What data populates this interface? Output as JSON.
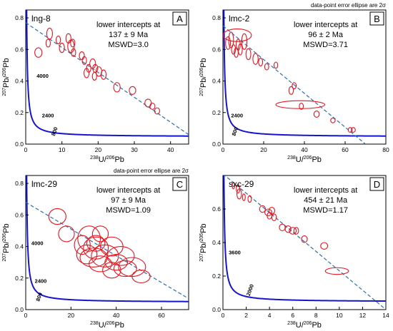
{
  "figure": {
    "error_note": "data-point error ellipse are 2σ"
  },
  "chart_data": [
    {
      "type": "scatter",
      "panel": "A",
      "sample": "lng-8",
      "intercept_lines": [
        "lower intercepts at",
        "137 ± 9 Ma",
        "MSWD=3.0"
      ],
      "xlabel": "238U/206Pb",
      "ylabel": "207Pb/206Pb",
      "xlim": [
        0,
        45
      ],
      "ylim": [
        0,
        0.85
      ],
      "xticks": [
        0,
        10,
        20,
        30,
        40
      ],
      "yticks": [
        0.0,
        0.2,
        0.4,
        0.6,
        0.8
      ],
      "show_error_note": false,
      "concordia_labels": [
        {
          "text": "4000",
          "x": 3.0,
          "y": 0.42
        },
        {
          "text": "2400",
          "x": 4.5,
          "y": 0.17
        },
        {
          "text": "800",
          "x": 8.0,
          "y": 0.05
        }
      ],
      "discordia": {
        "x": [
          0,
          45
        ],
        "y": [
          0.77,
          0.06
        ]
      },
      "points": [
        {
          "x": 3.5,
          "y": 0.58,
          "rx": 1.0,
          "ry": 0.03
        },
        {
          "x": 6.6,
          "y": 0.7,
          "rx": 0.8,
          "ry": 0.035
        },
        {
          "x": 6.2,
          "y": 0.64,
          "rx": 0.6,
          "ry": 0.025
        },
        {
          "x": 9.0,
          "y": 0.66,
          "rx": 0.6,
          "ry": 0.025
        },
        {
          "x": 10.0,
          "y": 0.61,
          "rx": 0.7,
          "ry": 0.03
        },
        {
          "x": 11.8,
          "y": 0.67,
          "rx": 0.7,
          "ry": 0.03
        },
        {
          "x": 12.5,
          "y": 0.62,
          "rx": 0.9,
          "ry": 0.04
        },
        {
          "x": 13.2,
          "y": 0.58,
          "rx": 0.6,
          "ry": 0.025
        },
        {
          "x": 13.0,
          "y": 0.64,
          "rx": 0.6,
          "ry": 0.025
        },
        {
          "x": 15.5,
          "y": 0.56,
          "rx": 0.7,
          "ry": 0.025
        },
        {
          "x": 16.2,
          "y": 0.53,
          "rx": 0.6,
          "ry": 0.025
        },
        {
          "x": 16.8,
          "y": 0.45,
          "rx": 0.7,
          "ry": 0.03
        },
        {
          "x": 17.4,
          "y": 0.48,
          "rx": 0.6,
          "ry": 0.025
        },
        {
          "x": 18.5,
          "y": 0.51,
          "rx": 0.8,
          "ry": 0.03
        },
        {
          "x": 19.2,
          "y": 0.48,
          "rx": 0.7,
          "ry": 0.025
        },
        {
          "x": 19.0,
          "y": 0.43,
          "rx": 0.6,
          "ry": 0.025
        },
        {
          "x": 20.2,
          "y": 0.46,
          "rx": 0.8,
          "ry": 0.03
        },
        {
          "x": 21.5,
          "y": 0.44,
          "rx": 0.7,
          "ry": 0.03
        },
        {
          "x": 25.2,
          "y": 0.36,
          "rx": 0.9,
          "ry": 0.03
        },
        {
          "x": 29.5,
          "y": 0.34,
          "rx": 0.9,
          "ry": 0.025
        },
        {
          "x": 33.8,
          "y": 0.26,
          "rx": 0.9,
          "ry": 0.025
        },
        {
          "x": 35.0,
          "y": 0.24,
          "rx": 0.7,
          "ry": 0.02
        },
        {
          "x": 36.3,
          "y": 0.21,
          "rx": 0.7,
          "ry": 0.02
        }
      ]
    },
    {
      "type": "scatter",
      "panel": "B",
      "sample": "lmc-2",
      "intercept_lines": [
        "lower intercepts at",
        "96 ± 2 Ma",
        "MSWD=3.71"
      ],
      "xlabel": "238U/206Pb",
      "ylabel": "207Pb/206Pb",
      "xlim": [
        0,
        80
      ],
      "ylim": [
        0,
        0.85
      ],
      "xticks": [
        0,
        20,
        40,
        60,
        80
      ],
      "yticks": [
        0.0,
        0.2,
        0.4,
        0.6,
        0.8
      ],
      "show_error_note": true,
      "concordia_labels": [
        {
          "text": "2400",
          "x": 4.0,
          "y": 0.17
        },
        {
          "text": "800",
          "x": 6.0,
          "y": 0.05
        }
      ],
      "discordia": {
        "x": [
          0,
          70
        ],
        "y": [
          0.75,
          0.0
        ]
      },
      "points": [
        {
          "x": 7.0,
          "y": 0.69,
          "rx": 7.0,
          "ry": 0.04
        },
        {
          "x": 2.5,
          "y": 0.64,
          "rx": 1.2,
          "ry": 0.04
        },
        {
          "x": 4.0,
          "y": 0.66,
          "rx": 1.2,
          "ry": 0.05
        },
        {
          "x": 5.2,
          "y": 0.6,
          "rx": 1.0,
          "ry": 0.03
        },
        {
          "x": 6.5,
          "y": 0.58,
          "rx": 1.0,
          "ry": 0.03
        },
        {
          "x": 7.5,
          "y": 0.63,
          "rx": 1.0,
          "ry": 0.035
        },
        {
          "x": 8.5,
          "y": 0.6,
          "rx": 1.0,
          "ry": 0.035
        },
        {
          "x": 10.5,
          "y": 0.65,
          "rx": 1.3,
          "ry": 0.05
        },
        {
          "x": 12.5,
          "y": 0.57,
          "rx": 1.2,
          "ry": 0.035
        },
        {
          "x": 16.0,
          "y": 0.54,
          "rx": 1.3,
          "ry": 0.035
        },
        {
          "x": 18.5,
          "y": 0.52,
          "rx": 1.0,
          "ry": 0.025
        },
        {
          "x": 21.5,
          "y": 0.49,
          "rx": 1.0,
          "ry": 0.02
        },
        {
          "x": 26.0,
          "y": 0.5,
          "rx": 0.9,
          "ry": 0.02
        },
        {
          "x": 33.5,
          "y": 0.34,
          "rx": 1.1,
          "ry": 0.025
        },
        {
          "x": 35.0,
          "y": 0.37,
          "rx": 1.0,
          "ry": 0.02
        },
        {
          "x": 38.0,
          "y": 0.25,
          "rx": 12.0,
          "ry": 0.025
        },
        {
          "x": 38.5,
          "y": 0.24,
          "rx": 1.0,
          "ry": 0.02
        },
        {
          "x": 46.0,
          "y": 0.19,
          "rx": 1.3,
          "ry": 0.02
        },
        {
          "x": 54.0,
          "y": 0.15,
          "rx": 1.1,
          "ry": 0.015
        },
        {
          "x": 62.5,
          "y": 0.09,
          "rx": 1.0,
          "ry": 0.015
        },
        {
          "x": 64.0,
          "y": 0.09,
          "rx": 1.0,
          "ry": 0.015
        }
      ]
    },
    {
      "type": "scatter",
      "panel": "C",
      "sample": "lmc-29",
      "intercept_lines": [
        "lower intercepts at",
        "97 ± 9 Ma",
        "MSWD=1.09"
      ],
      "xlabel": "238U/206Pb",
      "ylabel": "207Pb/206Pb",
      "xlim": [
        0,
        72
      ],
      "ylim": [
        0,
        0.85
      ],
      "xticks": [
        0,
        20,
        40,
        60
      ],
      "yticks": [
        0.0,
        0.2,
        0.4,
        0.6,
        0.8
      ],
      "show_error_note": true,
      "concordia_labels": [
        {
          "text": "4000",
          "x": 2.5,
          "y": 0.41
        },
        {
          "text": "2400",
          "x": 4.0,
          "y": 0.17
        },
        {
          "text": "800",
          "x": 6.0,
          "y": 0.05
        }
      ],
      "discordia": {
        "x": [
          0,
          72
        ],
        "y": [
          0.68,
          0.07
        ]
      },
      "points": [
        {
          "x": 14.0,
          "y": 0.59,
          "rx": 3.8,
          "ry": 0.05
        },
        {
          "x": 18.0,
          "y": 0.48,
          "rx": 3.5,
          "ry": 0.05
        },
        {
          "x": 25.0,
          "y": 0.41,
          "rx": 3.5,
          "ry": 0.06
        },
        {
          "x": 28.0,
          "y": 0.45,
          "rx": 5.0,
          "ry": 0.08
        },
        {
          "x": 31.0,
          "y": 0.39,
          "rx": 5.5,
          "ry": 0.07
        },
        {
          "x": 33.0,
          "y": 0.48,
          "rx": 3.5,
          "ry": 0.05
        },
        {
          "x": 27.0,
          "y": 0.35,
          "rx": 4.5,
          "ry": 0.06
        },
        {
          "x": 30.0,
          "y": 0.33,
          "rx": 6.0,
          "ry": 0.06
        },
        {
          "x": 35.0,
          "y": 0.34,
          "rx": 6.0,
          "ry": 0.07
        },
        {
          "x": 38.0,
          "y": 0.4,
          "rx": 5.0,
          "ry": 0.06
        },
        {
          "x": 33.0,
          "y": 0.29,
          "rx": 5.0,
          "ry": 0.05
        },
        {
          "x": 40.0,
          "y": 0.3,
          "rx": 5.0,
          "ry": 0.05
        },
        {
          "x": 42.0,
          "y": 0.34,
          "rx": 6.0,
          "ry": 0.06
        },
        {
          "x": 44.0,
          "y": 0.26,
          "rx": 5.0,
          "ry": 0.05
        },
        {
          "x": 47.0,
          "y": 0.27,
          "rx": 6.0,
          "ry": 0.06
        },
        {
          "x": 51.0,
          "y": 0.21,
          "rx": 4.0,
          "ry": 0.04
        },
        {
          "x": 38.0,
          "y": 0.25,
          "rx": 4.0,
          "ry": 0.05
        },
        {
          "x": 31.0,
          "y": 0.42,
          "rx": 4.0,
          "ry": 0.05
        }
      ]
    },
    {
      "type": "scatter",
      "panel": "D",
      "sample": "sxc-29",
      "intercept_lines": [
        "lower intercepts at",
        "454 ± 21 Ma",
        "MSWD=1.17"
      ],
      "xlabel": "238U/206Pb",
      "ylabel": "207Pb/206Pb",
      "xlim": [
        0,
        14
      ],
      "ylim": [
        0,
        0.8
      ],
      "xticks": [
        0,
        2,
        4,
        6,
        8,
        10,
        12,
        14
      ],
      "yticks": [
        0.0,
        0.2,
        0.4,
        0.6
      ],
      "show_error_note": false,
      "concordia_labels": [
        {
          "text": "3600",
          "x": 0.5,
          "y": 0.33
        },
        {
          "text": "2000",
          "x": 2.3,
          "y": 0.08
        }
      ],
      "discordia": {
        "x": [
          0,
          14
        ],
        "y": [
          0.81,
          0.0
        ]
      },
      "points": [
        {
          "x": 0.9,
          "y": 0.74,
          "rx": 0.1,
          "ry": 0.02
        },
        {
          "x": 1.3,
          "y": 0.72,
          "rx": 0.15,
          "ry": 0.025
        },
        {
          "x": 1.4,
          "y": 0.69,
          "rx": 0.2,
          "ry": 0.03
        },
        {
          "x": 1.8,
          "y": 0.67,
          "rx": 0.12,
          "ry": 0.02
        },
        {
          "x": 2.3,
          "y": 0.66,
          "rx": 0.15,
          "ry": 0.02
        },
        {
          "x": 3.4,
          "y": 0.6,
          "rx": 0.25,
          "ry": 0.02
        },
        {
          "x": 3.9,
          "y": 0.58,
          "rx": 0.3,
          "ry": 0.02
        },
        {
          "x": 4.0,
          "y": 0.56,
          "rx": 0.2,
          "ry": 0.02
        },
        {
          "x": 4.2,
          "y": 0.59,
          "rx": 0.25,
          "ry": 0.02
        },
        {
          "x": 4.4,
          "y": 0.55,
          "rx": 0.2,
          "ry": 0.02
        },
        {
          "x": 5.1,
          "y": 0.49,
          "rx": 0.25,
          "ry": 0.02
        },
        {
          "x": 5.6,
          "y": 0.48,
          "rx": 0.25,
          "ry": 0.02
        },
        {
          "x": 6.0,
          "y": 0.47,
          "rx": 0.3,
          "ry": 0.02
        },
        {
          "x": 6.3,
          "y": 0.47,
          "rx": 0.2,
          "ry": 0.02
        },
        {
          "x": 7.0,
          "y": 0.42,
          "rx": 0.25,
          "ry": 0.02
        },
        {
          "x": 8.7,
          "y": 0.38,
          "rx": 0.3,
          "ry": 0.02
        },
        {
          "x": 9.8,
          "y": 0.23,
          "rx": 1.0,
          "ry": 0.02
        }
      ]
    }
  ]
}
